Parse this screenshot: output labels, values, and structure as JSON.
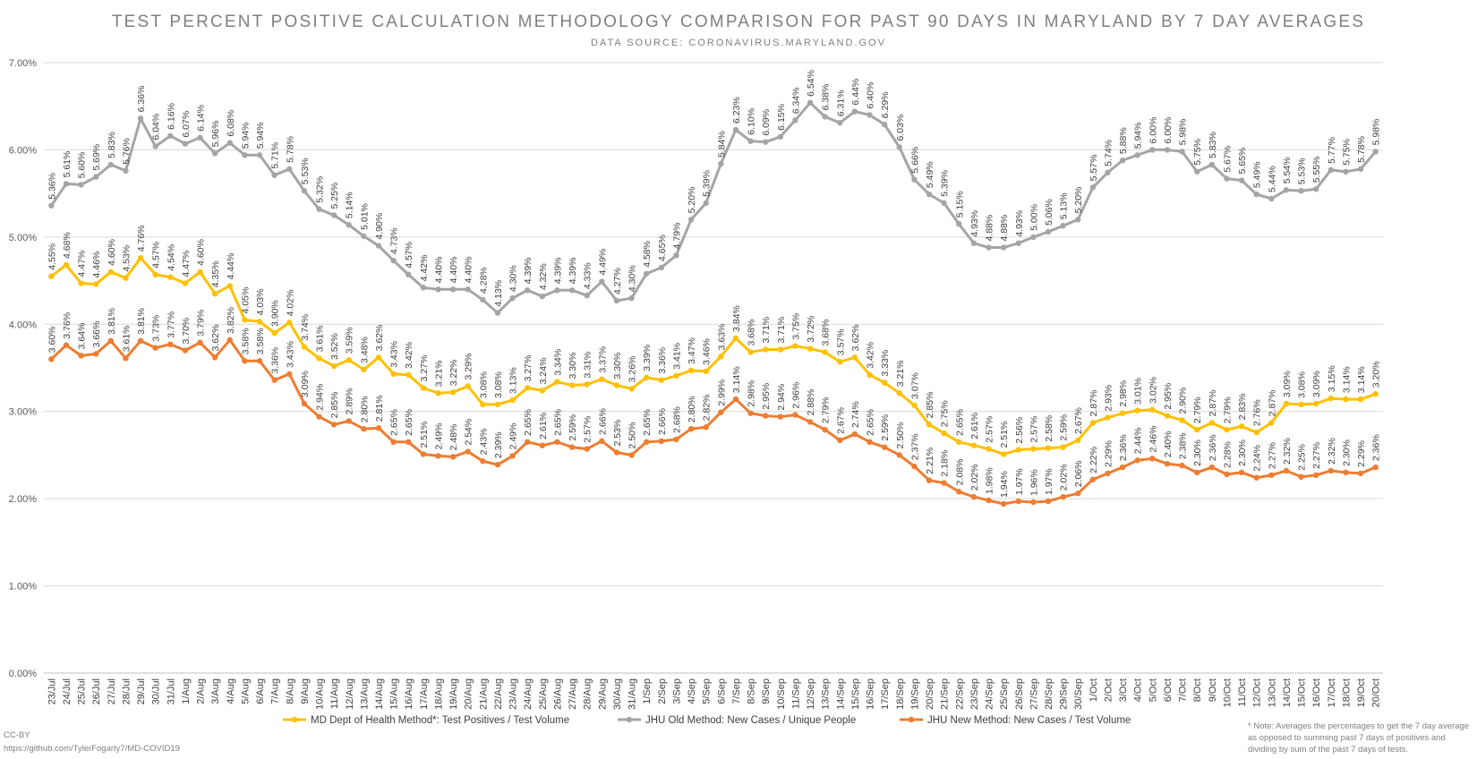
{
  "chart_data": {
    "type": "line",
    "title": "TEST PERCENT POSITIVE CALCULATION METHODOLOGY COMPARISON FOR PAST 90 DAYS IN MARYLAND BY 7 DAY AVERAGES",
    "subtitle": "DATA SOURCE: CORONAVIRUS.MARYLAND.GOV",
    "xlabel": "",
    "ylabel": "",
    "ylim": [
      0,
      7
    ],
    "yticks": [
      "0.00%",
      "1.00%",
      "2.00%",
      "3.00%",
      "4.00%",
      "5.00%",
      "6.00%",
      "7.00%"
    ],
    "grid": true,
    "legend_position": "bottom",
    "categories": [
      "23/Jul",
      "24/Jul",
      "25/Jul",
      "26/Jul",
      "27/Jul",
      "28/Jul",
      "29/Jul",
      "30/Jul",
      "31/Jul",
      "1/Aug",
      "2/Aug",
      "3/Aug",
      "4/Aug",
      "5/Aug",
      "6/Aug",
      "7/Aug",
      "8/Aug",
      "9/Aug",
      "10/Aug",
      "11/Aug",
      "12/Aug",
      "13/Aug",
      "14/Aug",
      "15/Aug",
      "16/Aug",
      "17/Aug",
      "18/Aug",
      "19/Aug",
      "20/Aug",
      "21/Aug",
      "22/Aug",
      "23/Aug",
      "24/Aug",
      "25/Aug",
      "26/Aug",
      "27/Aug",
      "28/Aug",
      "29/Aug",
      "30/Aug",
      "31/Aug",
      "1/Sep",
      "2/Sep",
      "3/Sep",
      "4/Sep",
      "5/Sep",
      "6/Sep",
      "7/Sep",
      "8/Sep",
      "9/Sep",
      "10/Sep",
      "11/Sep",
      "12/Sep",
      "13/Sep",
      "14/Sep",
      "15/Sep",
      "16/Sep",
      "17/Sep",
      "18/Sep",
      "19/Sep",
      "20/Sep",
      "21/Sep",
      "22/Sep",
      "23/Sep",
      "24/Sep",
      "25/Sep",
      "26/Sep",
      "27/Sep",
      "28/Sep",
      "29/Sep",
      "30/Sep",
      "1/Oct",
      "2/Oct",
      "3/Oct",
      "4/Oct",
      "5/Oct",
      "6/Oct",
      "7/Oct",
      "8/Oct",
      "9/Oct",
      "10/Oct",
      "11/Oct",
      "12/Oct",
      "13/Oct",
      "14/Oct",
      "15/Oct",
      "16/Oct",
      "17/Oct",
      "18/Oct",
      "19/Oct",
      "20/Oct"
    ],
    "series": [
      {
        "name": "JHU Old Method: New Cases / Unique People",
        "color": "#a5a5a5",
        "values": [
          5.36,
          5.61,
          5.6,
          5.69,
          5.83,
          5.76,
          6.36,
          6.04,
          6.16,
          6.07,
          6.14,
          5.96,
          6.08,
          5.94,
          5.94,
          5.71,
          5.78,
          5.53,
          5.32,
          5.25,
          5.14,
          5.01,
          4.9,
          4.73,
          4.57,
          4.42,
          4.4,
          4.4,
          4.4,
          4.28,
          4.13,
          4.3,
          4.39,
          4.32,
          4.39,
          4.39,
          4.33,
          4.49,
          4.27,
          4.3,
          4.58,
          4.65,
          4.79,
          5.2,
          5.39,
          5.84,
          6.23,
          6.1,
          6.09,
          6.15,
          6.34,
          6.54,
          6.38,
          6.31,
          6.44,
          6.4,
          6.29,
          6.03,
          5.66,
          5.49,
          5.39,
          5.15,
          4.93,
          4.88,
          4.88,
          4.93,
          5.0,
          5.06,
          5.13,
          5.2,
          5.57,
          5.74,
          5.88,
          5.94,
          6.0,
          6.0,
          5.98,
          5.75,
          5.83,
          5.67,
          5.65,
          5.49,
          5.44,
          5.54,
          5.53,
          5.55,
          5.77,
          5.75,
          5.78,
          5.98
        ]
      },
      {
        "name": "MD Dept of Health Method*: Test Positives / Test Volume",
        "color": "#ffc000",
        "values": [
          4.55,
          4.68,
          4.47,
          4.46,
          4.6,
          4.53,
          4.76,
          4.57,
          4.54,
          4.47,
          4.6,
          4.35,
          4.44,
          4.05,
          4.03,
          3.9,
          4.02,
          3.74,
          3.61,
          3.52,
          3.59,
          3.48,
          3.62,
          3.43,
          3.42,
          3.27,
          3.21,
          3.22,
          3.29,
          3.08,
          3.08,
          3.13,
          3.27,
          3.24,
          3.34,
          3.3,
          3.31,
          3.37,
          3.3,
          3.26,
          3.39,
          3.36,
          3.41,
          3.47,
          3.46,
          3.63,
          3.84,
          3.68,
          3.71,
          3.71,
          3.75,
          3.72,
          3.68,
          3.57,
          3.62,
          3.42,
          3.33,
          3.21,
          3.07,
          2.85,
          2.75,
          2.65,
          2.61,
          2.57,
          2.51,
          2.56,
          2.57,
          2.58,
          2.59,
          2.67,
          2.87,
          2.93,
          2.98,
          3.01,
          3.02,
          2.95,
          2.9,
          2.79,
          2.87,
          2.79,
          2.83,
          2.76,
          2.87,
          3.09,
          3.08,
          3.09,
          3.15,
          3.14,
          3.14,
          3.2
        ]
      },
      {
        "name": "JHU New Method: New Cases / Test Volume",
        "color": "#ed7d31",
        "values": [
          3.6,
          3.76,
          3.64,
          3.66,
          3.81,
          3.61,
          3.81,
          3.73,
          3.77,
          3.7,
          3.79,
          3.62,
          3.82,
          3.58,
          3.58,
          3.36,
          3.43,
          3.09,
          2.94,
          2.85,
          2.89,
          2.8,
          2.81,
          2.65,
          2.65,
          2.51,
          2.49,
          2.48,
          2.54,
          2.43,
          2.39,
          2.49,
          2.65,
          2.61,
          2.65,
          2.59,
          2.57,
          2.66,
          2.53,
          2.5,
          2.65,
          2.66,
          2.68,
          2.8,
          2.82,
          2.99,
          3.14,
          2.98,
          2.95,
          2.94,
          2.96,
          2.88,
          2.79,
          2.67,
          2.74,
          2.65,
          2.59,
          2.5,
          2.37,
          2.21,
          2.18,
          2.08,
          2.02,
          1.98,
          1.94,
          1.97,
          1.96,
          1.97,
          2.02,
          2.06,
          2.22,
          2.29,
          2.36,
          2.44,
          2.46,
          2.4,
          2.38,
          2.3,
          2.36,
          2.28,
          2.3,
          2.24,
          2.27,
          2.32,
          2.25,
          2.27,
          2.32,
          2.3,
          2.29,
          2.36
        ]
      }
    ],
    "legend_order": [
      1,
      0,
      2
    ]
  },
  "footer": {
    "license": "CC-BY",
    "source_url": "https://github.com/TylerFogarty7/MD-COVID19",
    "note_lines": [
      "* Note: Averages the percentages to get the 7 day average",
      "as opposed to summing past 7 days of positives and",
      "dividing by sum of the past 7 days of tests."
    ]
  }
}
